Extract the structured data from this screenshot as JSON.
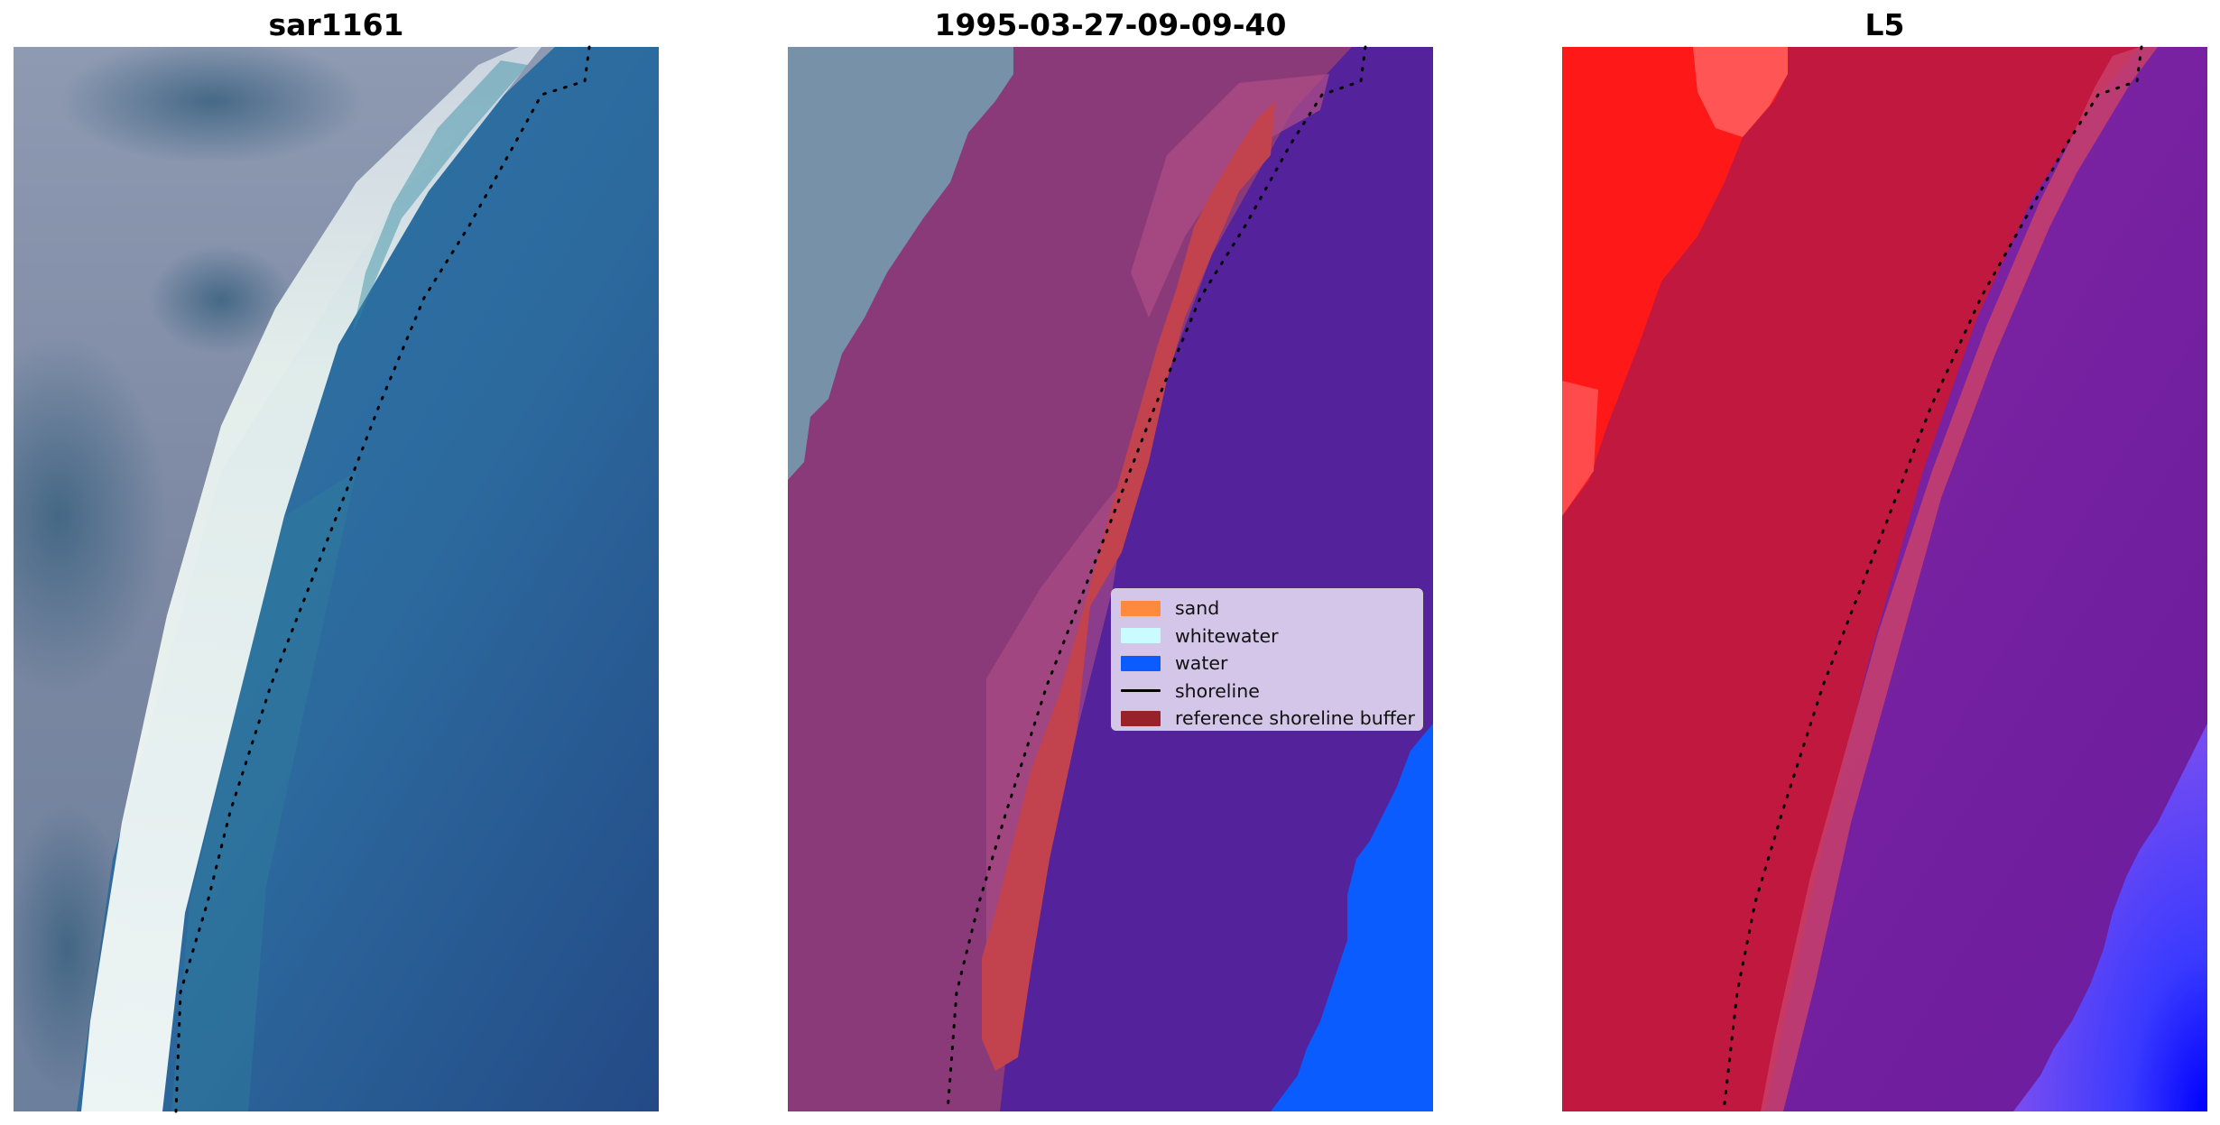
{
  "panels": [
    {
      "title": "sar1161"
    },
    {
      "title": "1995-03-27-09-09-40"
    },
    {
      "title": "L5"
    }
  ],
  "legend": {
    "items": [
      {
        "label": "sand",
        "color": "#ff8a3d",
        "kind": "patch"
      },
      {
        "label": "whitewater",
        "color": "#c9fbff",
        "kind": "patch"
      },
      {
        "label": "water",
        "color": "#0a5cff",
        "kind": "patch"
      },
      {
        "label": "shoreline",
        "color": "#000000",
        "kind": "line"
      },
      {
        "label": "reference shoreline buffer",
        "color": "#98212a",
        "kind": "patch"
      }
    ]
  },
  "colors": {
    "rgb_land": "#8a8fa8",
    "rgb_sea": "#2e6a9e",
    "rgb_surf": "#f0f6f4",
    "class_land": "#8a3a78",
    "class_buffer": "#c2424e",
    "class_sea": "#54229a",
    "class_water": "#0a5cff",
    "index_land": "#c01a3c",
    "index_sea": "#7a24a0",
    "index_hot": "#ff1414",
    "index_blue": "#2020ff"
  }
}
